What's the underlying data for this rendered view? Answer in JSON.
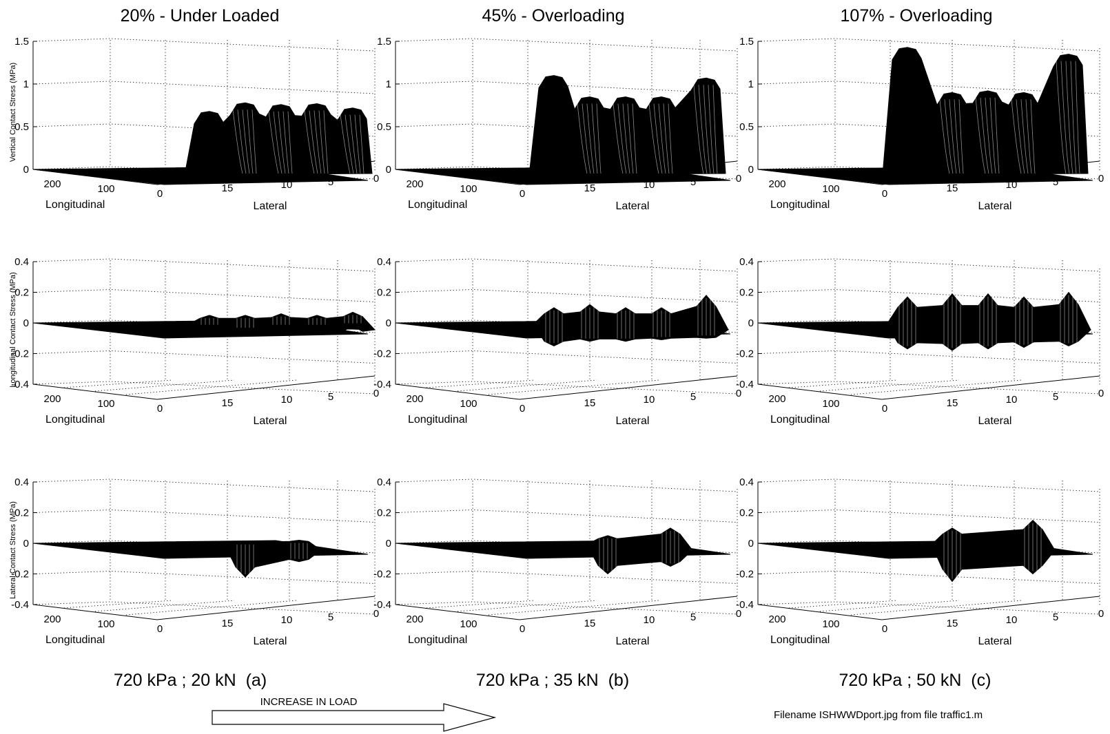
{
  "columns": [
    {
      "title": "20% - Under Loaded",
      "condition": "720 kPa ; 20 kN  (a)",
      "longitudinal_label": "Longitudinal",
      "lateral_label": "Lateral",
      "x_ticks": [
        "200",
        "100",
        "0"
      ],
      "y_ticks": [
        "15",
        "10",
        "5",
        "0"
      ]
    },
    {
      "title": "45% - Overloading",
      "condition": "720 kPa ; 35 kN  (b)",
      "longitudinal_label": "Longitudinal",
      "lateral_label": "Lateral",
      "x_ticks": [
        "200",
        "100",
        "0"
      ],
      "y_ticks": [
        "15",
        "10",
        "5",
        "0"
      ]
    },
    {
      "title": "107% - Overloading",
      "condition": "720 kPa ; 50 kN  (c)",
      "longitudinal_label": "Longitudinal",
      "lateral_label": "Lateral",
      "x_ticks": [
        "200",
        "100",
        "0"
      ],
      "y_ticks": [
        "15",
        "10",
        "5",
        "0"
      ]
    }
  ],
  "rows": [
    {
      "zlabel": "Vertical Contact Stress (MPa)",
      "z_ticks": [
        "1.5",
        "1",
        "0.5",
        "0"
      ]
    },
    {
      "zlabel": "Longitudinal Contact Stress (MPa)",
      "z_ticks": [
        "0.4",
        "0.2",
        "0",
        "-0.2",
        "-0.4"
      ]
    },
    {
      "zlabel": "Lateral Contact Stress (MPa)",
      "z_ticks": [
        "0.4",
        "0.2",
        "0",
        "-0.2",
        "-0.4"
      ]
    }
  ],
  "arrow_label": "INCREASE IN LOAD",
  "filename_note": "Filename ISHWWDport.jpg from file traffic1.m",
  "chart_data": [
    {
      "type": "surface",
      "title": "20% - Under Loaded",
      "xlabel": "Longitudinal",
      "ylabel": "Lateral",
      "zlabel": "Vertical Contact Stress (MPa)",
      "zlim": [
        0,
        1.5
      ],
      "x_range": [
        0,
        200
      ],
      "y_range": [
        0,
        18
      ],
      "lateral_positions": [
        15,
        13,
        11,
        9,
        7
      ],
      "peaks": [
        0.68,
        0.78,
        0.76,
        0.77,
        0.72
      ]
    },
    {
      "type": "surface",
      "title": "45% - Overloading",
      "xlabel": "Longitudinal",
      "ylabel": "Lateral",
      "zlabel": "Vertical Contact Stress (MPa)",
      "zlim": [
        0,
        1.5
      ],
      "x_range": [
        0,
        200
      ],
      "y_range": [
        0,
        18
      ],
      "lateral_positions": [
        16,
        14,
        12,
        10,
        7.5
      ],
      "peaks": [
        1.1,
        0.85,
        0.85,
        0.85,
        1.07
      ]
    },
    {
      "type": "surface",
      "title": "107% - Overloading",
      "xlabel": "Longitudinal",
      "ylabel": "Lateral",
      "zlabel": "Vertical Contact Stress (MPa)",
      "zlim": [
        0,
        1.5
      ],
      "x_range": [
        0,
        200
      ],
      "y_range": [
        0,
        18
      ],
      "lateral_positions": [
        16.5,
        14,
        12,
        10,
        7.5
      ],
      "peaks": [
        1.43,
        0.9,
        0.92,
        0.9,
        1.35
      ]
    },
    {
      "type": "surface",
      "title": "20% - Under Loaded",
      "xlabel": "Longitudinal",
      "ylabel": "Lateral",
      "zlabel": "Longitudinal Contact Stress (MPa)",
      "zlim": [
        -0.4,
        0.4
      ],
      "x_range": [
        0,
        200
      ],
      "y_range": [
        0,
        18
      ],
      "lateral_positions": [
        15,
        13,
        11,
        9,
        7
      ],
      "max_values": [
        0.05,
        0.05,
        0.06,
        0.05,
        0.07
      ],
      "min_values": [
        -0.03,
        -0.05,
        -0.03,
        -0.03,
        -0.02
      ]
    },
    {
      "type": "surface",
      "title": "45% - Overloading",
      "xlabel": "Longitudinal",
      "ylabel": "Lateral",
      "zlabel": "Longitudinal Contact Stress (MPa)",
      "zlim": [
        -0.4,
        0.4
      ],
      "x_range": [
        0,
        200
      ],
      "y_range": [
        0,
        18
      ],
      "lateral_positions": [
        16,
        14,
        12,
        10,
        7.5
      ],
      "max_values": [
        0.1,
        0.12,
        0.1,
        0.1,
        0.18
      ],
      "min_values": [
        -0.15,
        -0.12,
        -0.12,
        -0.11,
        -0.1
      ]
    },
    {
      "type": "surface",
      "title": "107% - Overloading",
      "xlabel": "Longitudinal",
      "ylabel": "Lateral",
      "zlabel": "Longitudinal Contact Stress (MPa)",
      "zlim": [
        -0.4,
        0.4
      ],
      "x_range": [
        0,
        200
      ],
      "y_range": [
        0,
        18
      ],
      "lateral_positions": [
        16.5,
        14,
        12,
        10,
        7.5
      ],
      "max_values": [
        0.17,
        0.19,
        0.19,
        0.17,
        0.2
      ],
      "min_values": [
        -0.17,
        -0.18,
        -0.17,
        -0.16,
        -0.15
      ]
    },
    {
      "type": "surface",
      "title": "20% - Under Loaded",
      "xlabel": "Longitudinal",
      "ylabel": "Lateral",
      "zlabel": "Lateral Contact Stress (MPa)",
      "zlim": [
        -0.4,
        0.4
      ],
      "x_range": [
        0,
        200
      ],
      "y_range": [
        0,
        18
      ],
      "lateral_positions": [
        13,
        10
      ],
      "max_values": [
        0.01,
        0.02
      ],
      "min_values": [
        -0.22,
        -0.12
      ]
    },
    {
      "type": "surface",
      "title": "45% - Overloading",
      "xlabel": "Longitudinal",
      "ylabel": "Lateral",
      "zlabel": "Lateral Contact Stress (MPa)",
      "zlim": [
        -0.4,
        0.4
      ],
      "x_range": [
        0,
        200
      ],
      "y_range": [
        0,
        18
      ],
      "lateral_positions": [
        13,
        9.5
      ],
      "max_values": [
        0.05,
        0.1
      ],
      "min_values": [
        -0.2,
        -0.15
      ]
    },
    {
      "type": "surface",
      "title": "107% - Overloading",
      "xlabel": "Longitudinal",
      "ylabel": "Lateral",
      "zlabel": "Lateral Contact Stress (MPa)",
      "zlim": [
        -0.4,
        0.4
      ],
      "x_range": [
        0,
        200
      ],
      "y_range": [
        0,
        18
      ],
      "lateral_positions": [
        14,
        9.5
      ],
      "max_values": [
        0.1,
        0.15
      ],
      "min_values": [
        -0.25,
        -0.2
      ]
    }
  ]
}
